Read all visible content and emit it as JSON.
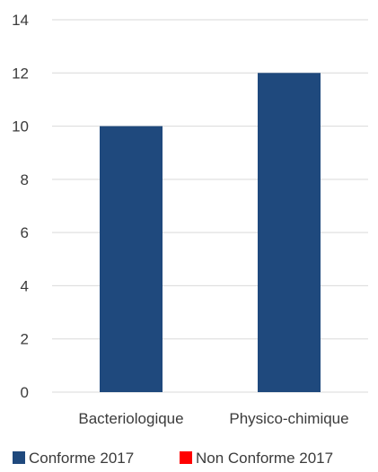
{
  "chart_data": {
    "type": "bar",
    "categories": [
      "Bacteriologique",
      "Physico-chimique"
    ],
    "series": [
      {
        "name": "Conforme 2017",
        "color": "#1F497D",
        "values": [
          10,
          12
        ]
      },
      {
        "name": "Non Conforme 2017",
        "color": "#FF0000",
        "values": [
          0,
          0
        ]
      }
    ],
    "ylim": [
      0,
      14
    ],
    "yticks": [
      0,
      2,
      4,
      6,
      8,
      10,
      12,
      14
    ],
    "grid": true,
    "legend_position": "bottom"
  }
}
